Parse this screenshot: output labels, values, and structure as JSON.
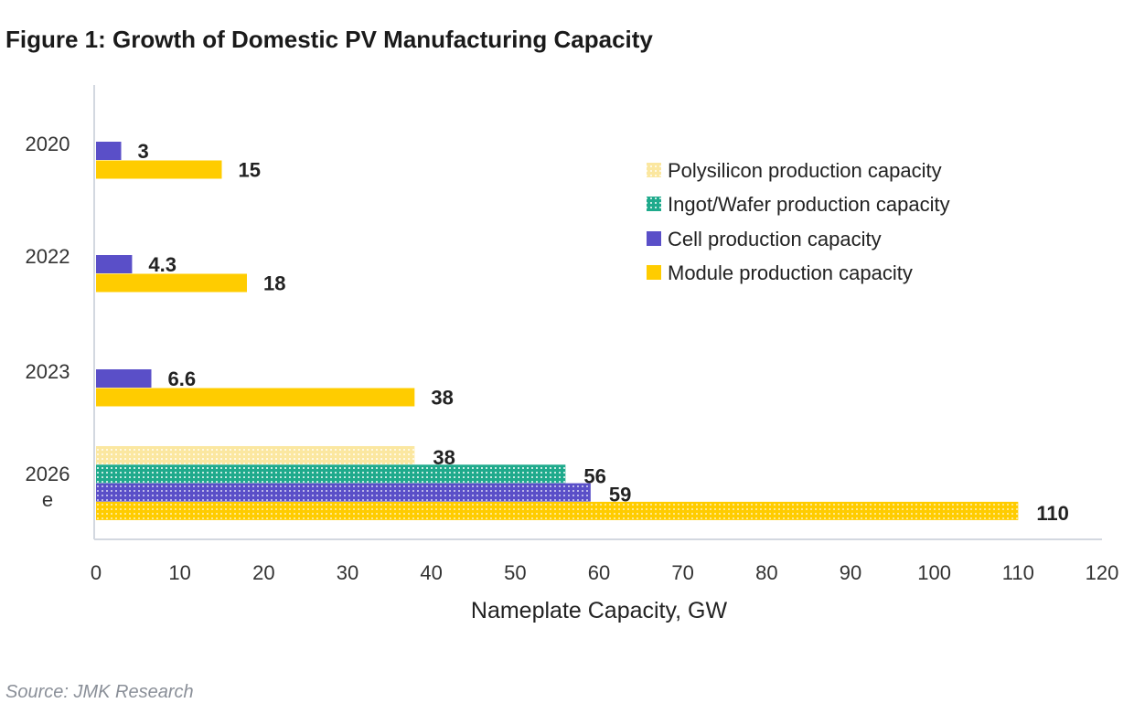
{
  "chart_data": {
    "type": "bar",
    "orientation": "horizontal",
    "title": "Figure 1: Growth of Domestic PV Manufacturing Capacity",
    "xlabel": "Nameplate Capacity, GW",
    "ylabel": "",
    "xlim": [
      0,
      120
    ],
    "xticks": [
      0,
      10,
      20,
      30,
      40,
      50,
      60,
      70,
      80,
      90,
      100,
      110,
      120
    ],
    "grid": false,
    "legend_position": "right",
    "categories": [
      "2020",
      "2022",
      "2023",
      "2026 e"
    ],
    "series": [
      {
        "name": "Polysilicon production capacity",
        "color": "#FBE7A0",
        "pattern": "dotted",
        "values": [
          null,
          null,
          null,
          38
        ]
      },
      {
        "name": "Ingot/Wafer production capacity",
        "color": "#1FAA8C",
        "pattern": "dotted",
        "values": [
          null,
          null,
          null,
          56
        ]
      },
      {
        "name": "Cell production capacity",
        "color": "#5A4FC8",
        "pattern": "solid",
        "values": [
          3,
          4.3,
          6.6,
          59
        ]
      },
      {
        "name": "Module production capacity",
        "color": "#FFCC00",
        "pattern": "solid",
        "values": [
          15,
          18,
          38,
          110
        ]
      }
    ],
    "data_labels": [
      [
        "3",
        "15"
      ],
      [
        "4.3",
        "18"
      ],
      [
        "6.6",
        "38"
      ],
      [
        "38",
        "56",
        "59",
        "110"
      ]
    ]
  },
  "source": "Source: JMK Research"
}
